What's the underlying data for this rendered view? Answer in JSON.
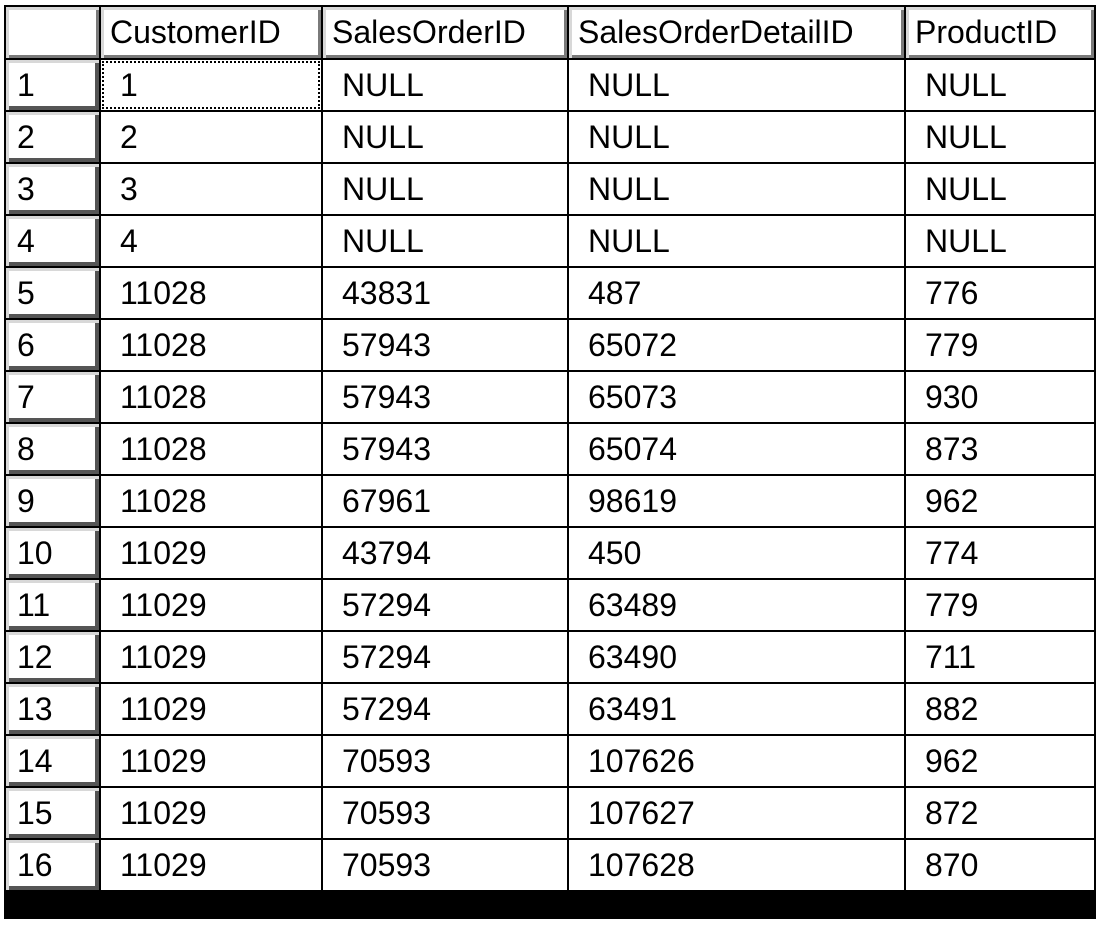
{
  "grid": {
    "columns": [
      "CustomerID",
      "SalesOrderID",
      "SalesOrderDetailID",
      "ProductID"
    ],
    "rows": [
      {
        "num": "1",
        "CustomerID": "1",
        "SalesOrderID": "NULL",
        "SalesOrderDetailID": "NULL",
        "ProductID": "NULL"
      },
      {
        "num": "2",
        "CustomerID": "2",
        "SalesOrderID": "NULL",
        "SalesOrderDetailID": "NULL",
        "ProductID": "NULL"
      },
      {
        "num": "3",
        "CustomerID": "3",
        "SalesOrderID": "NULL",
        "SalesOrderDetailID": "NULL",
        "ProductID": "NULL"
      },
      {
        "num": "4",
        "CustomerID": "4",
        "SalesOrderID": "NULL",
        "SalesOrderDetailID": "NULL",
        "ProductID": "NULL"
      },
      {
        "num": "5",
        "CustomerID": "11028",
        "SalesOrderID": "43831",
        "SalesOrderDetailID": "487",
        "ProductID": "776"
      },
      {
        "num": "6",
        "CustomerID": "11028",
        "SalesOrderID": "57943",
        "SalesOrderDetailID": "65072",
        "ProductID": "779"
      },
      {
        "num": "7",
        "CustomerID": "11028",
        "SalesOrderID": "57943",
        "SalesOrderDetailID": "65073",
        "ProductID": "930"
      },
      {
        "num": "8",
        "CustomerID": "11028",
        "SalesOrderID": "57943",
        "SalesOrderDetailID": "65074",
        "ProductID": "873"
      },
      {
        "num": "9",
        "CustomerID": "11028",
        "SalesOrderID": "67961",
        "SalesOrderDetailID": "98619",
        "ProductID": "962"
      },
      {
        "num": "10",
        "CustomerID": "11029",
        "SalesOrderID": "43794",
        "SalesOrderDetailID": "450",
        "ProductID": "774"
      },
      {
        "num": "11",
        "CustomerID": "11029",
        "SalesOrderID": "57294",
        "SalesOrderDetailID": "63489",
        "ProductID": "779"
      },
      {
        "num": "12",
        "CustomerID": "11029",
        "SalesOrderID": "57294",
        "SalesOrderDetailID": "63490",
        "ProductID": "711"
      },
      {
        "num": "13",
        "CustomerID": "11029",
        "SalesOrderID": "57294",
        "SalesOrderDetailID": "63491",
        "ProductID": "882"
      },
      {
        "num": "14",
        "CustomerID": "11029",
        "SalesOrderID": "70593",
        "SalesOrderDetailID": "107626",
        "ProductID": "962"
      },
      {
        "num": "15",
        "CustomerID": "11029",
        "SalesOrderID": "70593",
        "SalesOrderDetailID": "107627",
        "ProductID": "872"
      },
      {
        "num": "16",
        "CustomerID": "11029",
        "SalesOrderID": "70593",
        "SalesOrderDetailID": "107628",
        "ProductID": "870"
      }
    ]
  }
}
